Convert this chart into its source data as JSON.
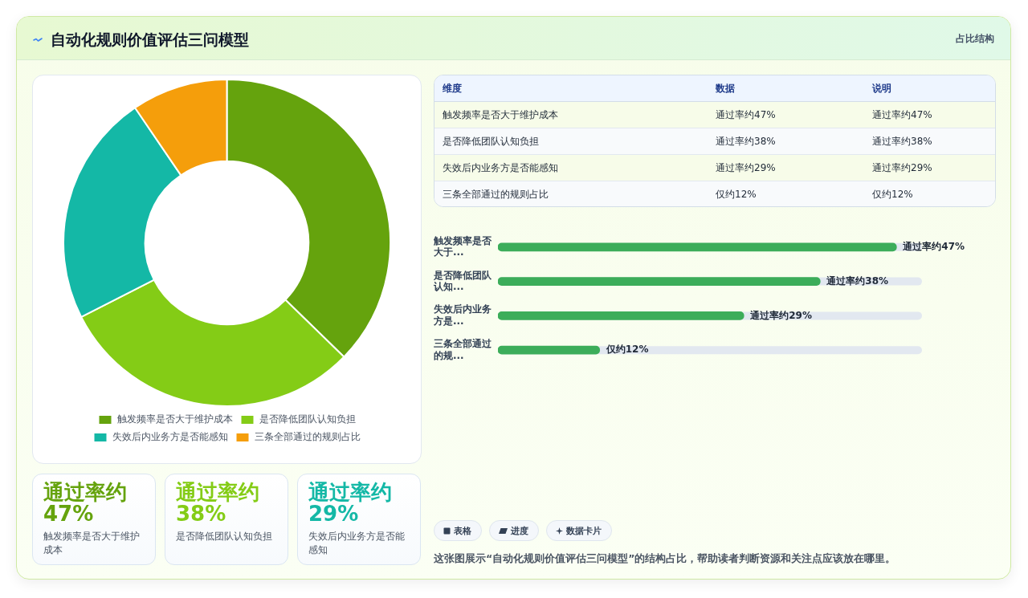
{
  "chart_data": [
    {
      "type": "donut",
      "title": "自动化规则价值评估三问模型",
      "categories": [
        "触发频率是否大于维护成本",
        "是否降低团队认知负担",
        "失效后内业务方是否能感知",
        "三条全部通过的规则占比"
      ],
      "values": [
        37.3,
        30.2,
        23.0,
        9.5
      ],
      "colors": [
        "#65a30d",
        "#84cc16",
        "#14b8a6",
        "#f59e0b"
      ],
      "legend": "bottom"
    },
    {
      "type": "other",
      "subtitle": "占比结构",
      "annotations": [
        "维度",
        "数据",
        "说明",
        "触发频率是否大于维护成本",
        "通过率约47%",
        "通过率约47%",
        "是否降低团队认知负担",
        "通过率约38%",
        "通过率约38%",
        "失效后内业务方是否能感知",
        "通过率约29%",
        "通过率约29%",
        "三条全部通过的规则占比",
        "仅约12%",
        "仅约12%"
      ]
    },
    {
      "type": "bar",
      "orientation": "horizontal",
      "categories": [
        "触发频率是否大于...",
        "是否降低团队认知...",
        "失效后内业务方是...",
        "三条全部通过的规..."
      ],
      "values": [
        47,
        38,
        29,
        12
      ],
      "color": "#3cad5a",
      "tick_labels": "y",
      "value_labels": [
        "通过率约47%",
        "通过率约38%",
        "通过率约29%",
        "仅约12%"
      ]
    },
    {
      "type": "other",
      "categories": [
        "触发频率是否大于维护成本",
        "是否降低团队认知负担",
        "失效后内业务方是否能感知"
      ],
      "value_labels": [
        "通过率约47%",
        "通过率约38%",
        "通过率约29%"
      ]
    },
    {
      "type": "other",
      "categories": [
        "表格",
        "进度",
        "数据卡片"
      ],
      "annotations": [
        "这张图展示“自动化规则价值评估三问模型”的结构占比，帮助读者判断资源和关注点应该放在哪里。"
      ]
    }
  ]
}
